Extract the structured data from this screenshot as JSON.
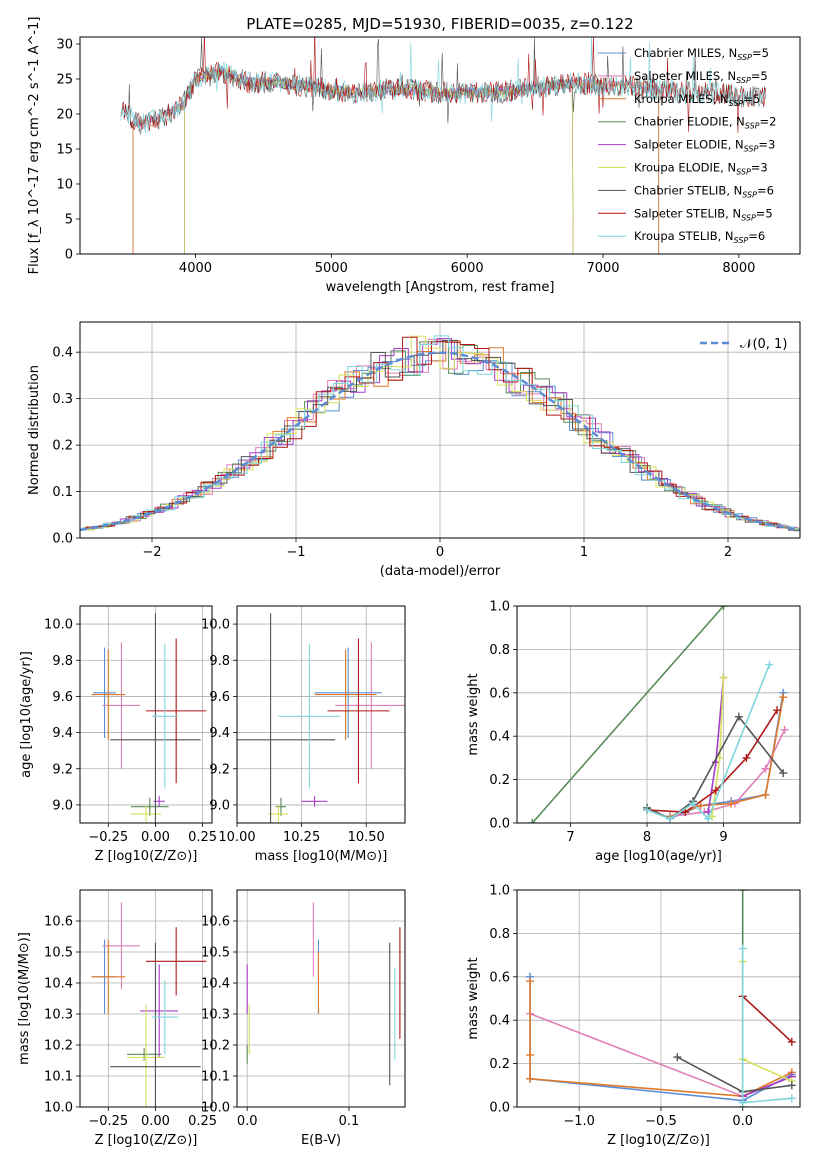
{
  "title": "PLATE=0285, MJD=51930, FIBERID=0035, z=0.122",
  "colors": {
    "Chabrier MILES": "#5b8dd6",
    "Salpeter MILES": "#e07fb6",
    "Kroupa MILES": "#e07a2a",
    "Chabrier ELODIE": "#5a8a5a",
    "Salpeter ELODIE": "#a63ec8",
    "Kroupa ELODIE": "#d8df5a",
    "Chabrier STELIB": "#555555",
    "Salpeter STELIB": "#b01818",
    "Kroupa STELIB": "#7fd6dc",
    "Normal": "#5b8dd6"
  },
  "chart_data": [
    {
      "type": "line",
      "id": "spectrum",
      "xlabel": "wavelength [Angstrom, rest frame]",
      "ylabel": "Flux [f_λ 10^-17 erg cm^-2 s^-1 A^-1]",
      "xlim": [
        3150,
        8450
      ],
      "ylim": [
        0,
        31
      ],
      "xticks": [
        4000,
        5000,
        6000,
        7000,
        8000
      ],
      "yticks": [
        0,
        5,
        10,
        15,
        20,
        25,
        30
      ],
      "grid": false,
      "legend_position": "right",
      "series": [
        {
          "name": "Chabrier MILES, N_SSP=5",
          "legend": [
            "Chabrier MILES, N",
            "SSP",
            "=5"
          ],
          "color_key": "Chabrier MILES",
          "range": [
            3540,
            7410
          ]
        },
        {
          "name": "Salpeter MILES, N_SSP=5",
          "legend": [
            "Salpeter MILES, N",
            "SSP",
            "=5"
          ],
          "color_key": "Salpeter MILES",
          "range": [
            3540,
            7410
          ]
        },
        {
          "name": "Kroupa MILES, N_SSP=5",
          "legend": [
            "Kroupa MILES, N",
            "SSP",
            "=5"
          ],
          "color_key": "Kroupa MILES",
          "range": [
            3540,
            7410
          ]
        },
        {
          "name": "Chabrier ELODIE, N_SSP=2",
          "legend": [
            "Chabrier ELODIE, N",
            "SSP",
            "=2"
          ],
          "color_key": "Chabrier ELODIE",
          "range": [
            3920,
            6780
          ]
        },
        {
          "name": "Salpeter ELODIE, N_SSP=3",
          "legend": [
            "Salpeter ELODIE, N",
            "SSP",
            "=3"
          ],
          "color_key": "Salpeter ELODIE",
          "range": [
            3920,
            6780
          ]
        },
        {
          "name": "Kroupa ELODIE, N_SSP=3",
          "legend": [
            "Kroupa ELODIE, N",
            "SSP",
            "=3"
          ],
          "color_key": "Kroupa ELODIE",
          "range": [
            3920,
            6780
          ]
        },
        {
          "name": "Chabrier STELIB, N_SSP=6",
          "legend": [
            "Chabrier STELIB, N",
            "SSP",
            "=6"
          ],
          "color_key": "Chabrier STELIB",
          "range": [
            3450,
            8200
          ]
        },
        {
          "name": "Salpeter STELIB, N_SSP=5",
          "legend": [
            "Salpeter STELIB, N",
            "SSP",
            "=5"
          ],
          "color_key": "Salpeter STELIB",
          "range": [
            3450,
            8200
          ]
        },
        {
          "name": "Kroupa STELIB, N_SSP=6",
          "legend": [
            "Kroupa STELIB, N",
            "SSP",
            "=6"
          ],
          "color_key": "Kroupa STELIB",
          "range": [
            3450,
            8200
          ]
        }
      ],
      "continuum": [
        [
          3450,
          20.5
        ],
        [
          3600,
          18.5
        ],
        [
          3750,
          19.5
        ],
        [
          3900,
          21
        ],
        [
          4000,
          25
        ],
        [
          4200,
          26
        ],
        [
          4400,
          24.5
        ],
        [
          4600,
          24.5
        ],
        [
          4800,
          24
        ],
        [
          5000,
          23.5
        ],
        [
          5200,
          23
        ],
        [
          5400,
          23.5
        ],
        [
          5600,
          23.5
        ],
        [
          5800,
          23
        ],
        [
          6000,
          23
        ],
        [
          6200,
          23
        ],
        [
          6400,
          23.5
        ],
        [
          6600,
          24
        ],
        [
          6800,
          24.5
        ],
        [
          7000,
          24
        ],
        [
          7200,
          24
        ],
        [
          7400,
          23.5
        ],
        [
          7600,
          23
        ],
        [
          7800,
          23
        ],
        [
          8000,
          22.5
        ],
        [
          8200,
          22.5
        ]
      ]
    },
    {
      "type": "area",
      "id": "residuals",
      "xlabel": "(data-model)/error",
      "ylabel": "Normed distribution",
      "xlim": [
        -2.5,
        2.5
      ],
      "ylim": [
        0,
        0.465
      ],
      "xticks": [
        -2,
        -1,
        0,
        1,
        2
      ],
      "yticks": [
        0.0,
        0.1,
        0.2,
        0.3,
        0.4
      ],
      "grid": true,
      "legend_position": "top-right",
      "normal_label": "𝒩(0, 1)",
      "bin_width": 0.1
    },
    {
      "type": "scatter",
      "id": "age-vs-Z",
      "xlabel": "Z [log10(Z/Z⊙)]",
      "ylabel": "age [log10(age/yr)]",
      "xlim": [
        -0.4,
        0.3
      ],
      "ylim": [
        8.9,
        10.1
      ],
      "xticks": [
        -0.25,
        0.0,
        0.25
      ],
      "yticks": [
        9.0,
        9.2,
        9.4,
        9.6,
        9.8,
        10.0
      ],
      "grid": true,
      "points": [
        {
          "color_key": "Chabrier MILES",
          "x": -0.27,
          "xerr": 0.06,
          "y": 9.62,
          "yerr": 0.25
        },
        {
          "color_key": "Salpeter MILES",
          "x": -0.18,
          "xerr": 0.1,
          "y": 9.55,
          "yerr": 0.35
        },
        {
          "color_key": "Kroupa MILES",
          "x": -0.25,
          "xerr": 0.09,
          "y": 9.61,
          "yerr": 0.25
        },
        {
          "color_key": "Chabrier ELODIE",
          "x": -0.03,
          "xerr": 0.1,
          "y": 8.99,
          "yerr": 0.05
        },
        {
          "color_key": "Salpeter ELODIE",
          "x": 0.02,
          "xerr": 0.03,
          "y": 9.02,
          "yerr": 0.03
        },
        {
          "color_key": "Kroupa ELODIE",
          "x": -0.05,
          "xerr": 0.08,
          "y": 8.95,
          "yerr": 0.05
        },
        {
          "color_key": "Chabrier STELIB",
          "x": 0.0,
          "xerr": 0.24,
          "y": 9.36,
          "yerr": 0.7
        },
        {
          "color_key": "Salpeter STELIB",
          "x": 0.11,
          "xerr": 0.16,
          "y": 9.52,
          "yerr": 0.4
        },
        {
          "color_key": "Kroupa STELIB",
          "x": 0.05,
          "xerr": 0.07,
          "y": 9.49,
          "yerr": 0.4
        }
      ]
    },
    {
      "type": "scatter",
      "id": "age-vs-mass",
      "xlabel": "mass [log10(M/M⊙)]",
      "ylabel": "",
      "xlim": [
        10.0,
        10.65
      ],
      "ylim": [
        8.9,
        10.1
      ],
      "xticks": [
        10.0,
        10.25,
        10.5
      ],
      "yticks": [
        9.0,
        9.2,
        9.4,
        9.6,
        9.8,
        10.0
      ],
      "grid": true,
      "points": [
        {
          "color_key": "Chabrier MILES",
          "x": 10.43,
          "xerr": 0.13,
          "y": 9.62,
          "yerr": 0.25
        },
        {
          "color_key": "Salpeter MILES",
          "x": 10.52,
          "xerr": 0.14,
          "y": 9.55,
          "yerr": 0.35
        },
        {
          "color_key": "Kroupa MILES",
          "x": 10.42,
          "xerr": 0.12,
          "y": 9.61,
          "yerr": 0.25
        },
        {
          "color_key": "Chabrier ELODIE",
          "x": 10.17,
          "xerr": 0.02,
          "y": 8.99,
          "yerr": 0.05
        },
        {
          "color_key": "Salpeter ELODIE",
          "x": 10.3,
          "xerr": 0.05,
          "y": 9.02,
          "yerr": 0.03
        },
        {
          "color_key": "Kroupa ELODIE",
          "x": 10.16,
          "xerr": 0.04,
          "y": 8.95,
          "yerr": 0.05
        },
        {
          "color_key": "Chabrier STELIB",
          "x": 10.13,
          "xerr": 0.25,
          "y": 9.36,
          "yerr": 0.7
        },
        {
          "color_key": "Salpeter STELIB",
          "x": 10.47,
          "xerr": 0.12,
          "y": 9.52,
          "yerr": 0.4
        },
        {
          "color_key": "Kroupa STELIB",
          "x": 10.28,
          "xerr": 0.12,
          "y": 9.49,
          "yerr": 0.4
        }
      ]
    },
    {
      "type": "line",
      "id": "mass-weight-vs-age",
      "xlabel": "age [log10(age/yr)]",
      "ylabel": "mass weight",
      "xlim": [
        6.3,
        10.0
      ],
      "ylim": [
        0.0,
        1.0
      ],
      "xticks": [
        7,
        8,
        9
      ],
      "yticks": [
        0.0,
        0.2,
        0.4,
        0.6,
        0.8,
        1.0
      ],
      "grid": true,
      "series": [
        {
          "color_key": "Chabrier MILES",
          "points": [
            [
              8.3,
              0.02
            ],
            [
              8.7,
              0.08
            ],
            [
              9.1,
              0.1
            ],
            [
              9.55,
              0.13
            ],
            [
              9.78,
              0.6
            ]
          ]
        },
        {
          "color_key": "Salpeter MILES",
          "points": [
            [
              8.3,
              0.03
            ],
            [
              8.75,
              0.05
            ],
            [
              9.15,
              0.09
            ],
            [
              9.55,
              0.25
            ],
            [
              9.8,
              0.43
            ]
          ]
        },
        {
          "color_key": "Kroupa MILES",
          "points": [
            [
              8.3,
              0.03
            ],
            [
              8.7,
              0.08
            ],
            [
              9.1,
              0.09
            ],
            [
              9.55,
              0.13
            ],
            [
              9.78,
              0.58
            ]
          ]
        },
        {
          "color_key": "Chabrier ELODIE",
          "points": [
            [
              6.5,
              0.0
            ],
            [
              9.0,
              1.0
            ]
          ]
        },
        {
          "color_key": "Salpeter ELODIE",
          "points": [
            [
              8.8,
              0.05
            ],
            [
              8.9,
              0.28
            ],
            [
              9.0,
              0.67
            ]
          ]
        },
        {
          "color_key": "Kroupa ELODIE",
          "points": [
            [
              8.85,
              0.03
            ],
            [
              8.95,
              0.3
            ],
            [
              9.0,
              0.67
            ]
          ]
        },
        {
          "color_key": "Chabrier STELIB",
          "points": [
            [
              8.0,
              0.07
            ],
            [
              8.3,
              0.02
            ],
            [
              8.6,
              0.1
            ],
            [
              9.2,
              0.49
            ],
            [
              9.78,
              0.23
            ]
          ]
        },
        {
          "color_key": "Salpeter STELIB",
          "points": [
            [
              8.0,
              0.06
            ],
            [
              8.5,
              0.05
            ],
            [
              8.9,
              0.15
            ],
            [
              9.3,
              0.3
            ],
            [
              9.7,
              0.52
            ]
          ]
        },
        {
          "color_key": "Kroupa STELIB",
          "points": [
            [
              8.0,
              0.06
            ],
            [
              8.3,
              0.02
            ],
            [
              8.6,
              0.09
            ],
            [
              8.8,
              0.02
            ],
            [
              9.6,
              0.73
            ]
          ]
        }
      ]
    },
    {
      "type": "scatter",
      "id": "mass-vs-Z",
      "xlabel": "Z [log10(Z/Z⊙)]",
      "ylabel": "mass [log10(M/M⊙)]",
      "xlim": [
        -0.4,
        0.3
      ],
      "ylim": [
        10.0,
        10.7
      ],
      "xticks": [
        -0.25,
        0.0,
        0.25
      ],
      "yticks": [
        10.0,
        10.1,
        10.2,
        10.3,
        10.4,
        10.5,
        10.6
      ],
      "grid": true,
      "points": [
        {
          "color_key": "Chabrier MILES",
          "x": -0.27,
          "xerr": 0.06,
          "y": 10.42,
          "yerr": 0.12
        },
        {
          "color_key": "Salpeter MILES",
          "x": -0.18,
          "xerr": 0.1,
          "y": 10.52,
          "yerr": 0.14
        },
        {
          "color_key": "Kroupa MILES",
          "x": -0.25,
          "xerr": 0.09,
          "y": 10.42,
          "yerr": 0.12
        },
        {
          "color_key": "Chabrier ELODIE",
          "x": -0.06,
          "xerr": 0.09,
          "y": 10.17,
          "yerr": 0.02
        },
        {
          "color_key": "Salpeter ELODIE",
          "x": 0.02,
          "xerr": 0.1,
          "y": 10.31,
          "yerr": 0.15
        },
        {
          "color_key": "Kroupa ELODIE",
          "x": -0.05,
          "xerr": 0.1,
          "y": 10.16,
          "yerr": 0.17
        },
        {
          "color_key": "Chabrier STELIB",
          "x": 0.0,
          "xerr": 0.24,
          "y": 10.13,
          "yerr": 0.4
        },
        {
          "color_key": "Salpeter STELIB",
          "x": 0.11,
          "xerr": 0.16,
          "y": 10.47,
          "yerr": 0.11
        },
        {
          "color_key": "Kroupa STELIB",
          "x": 0.05,
          "xerr": 0.07,
          "y": 10.29,
          "yerr": 0.12
        }
      ]
    },
    {
      "type": "scatter",
      "id": "mass-vs-ebv",
      "xlabel": "E(B-V)",
      "ylabel": "",
      "xlim": [
        -0.01,
        0.155
      ],
      "ylim": [
        10.0,
        10.7
      ],
      "xticks": [
        0.0,
        0.1
      ],
      "yticks": [
        10.0,
        10.1,
        10.2,
        10.3,
        10.4,
        10.5,
        10.6
      ],
      "grid": true,
      "points": [
        {
          "color_key": "Chabrier MILES",
          "x": 0.07,
          "y": 10.42,
          "yerr": 0.12
        },
        {
          "color_key": "Salpeter MILES",
          "x": 0.065,
          "y": 10.54,
          "yerr": 0.12
        },
        {
          "color_key": "Kroupa MILES",
          "x": 0.07,
          "y": 10.4,
          "yerr": 0.1
        },
        {
          "color_key": "Chabrier ELODIE",
          "x": 0.0,
          "y": 10.17,
          "yerr": 0.03
        },
        {
          "color_key": "Salpeter ELODIE",
          "x": 0.0,
          "y": 10.38,
          "yerr": 0.08
        },
        {
          "color_key": "Kroupa ELODIE",
          "x": 0.002,
          "y": 10.25,
          "yerr": 0.08
        },
        {
          "color_key": "Chabrier STELIB",
          "x": 0.14,
          "y": 10.3,
          "yerr": 0.23
        },
        {
          "color_key": "Salpeter STELIB",
          "x": 0.15,
          "y": 10.4,
          "yerr": 0.18
        },
        {
          "color_key": "Kroupa STELIB",
          "x": 0.145,
          "y": 10.3,
          "yerr": 0.15
        }
      ]
    },
    {
      "type": "line",
      "id": "mass-weight-vs-Z",
      "xlabel": "Z [log10(Z/Z⊙)]",
      "ylabel": "mass weight",
      "xlim": [
        -1.38,
        0.35
      ],
      "ylim": [
        0.0,
        1.0
      ],
      "xticks": [
        -1.0,
        -0.5,
        0.0
      ],
      "yticks": [
        0.0,
        0.2,
        0.4,
        0.6,
        0.8,
        1.0
      ],
      "grid": true,
      "series": [
        {
          "color_key": "Chabrier MILES",
          "points": [
            [
              -1.3,
              0.6
            ],
            [
              -1.3,
              0.13
            ],
            [
              0.0,
              0.03
            ],
            [
              0.3,
              0.15
            ]
          ]
        },
        {
          "color_key": "Salpeter MILES",
          "points": [
            [
              -1.3,
              0.43
            ],
            [
              0.0,
              0.05
            ],
            [
              0.3,
              0.14
            ]
          ]
        },
        {
          "color_key": "Kroupa MILES",
          "points": [
            [
              -1.3,
              0.58
            ],
            [
              -1.3,
              0.24
            ],
            [
              -1.3,
              0.13
            ],
            [
              0.0,
              0.05
            ],
            [
              0.3,
              0.16
            ]
          ]
        },
        {
          "color_key": "Chabrier ELODIE",
          "points": [
            [
              0.0,
              1.0
            ],
            [
              0.0,
              0.0
            ]
          ]
        },
        {
          "color_key": "Salpeter ELODIE",
          "points": [
            [
              0.0,
              0.05
            ],
            [
              0.3,
              0.14
            ]
          ]
        },
        {
          "color_key": "Kroupa ELODIE",
          "points": [
            [
              0.0,
              0.67
            ],
            [
              0.0,
              0.22
            ],
            [
              0.3,
              0.12
            ]
          ]
        },
        {
          "color_key": "Chabrier STELIB",
          "points": [
            [
              -0.4,
              0.23
            ],
            [
              0.0,
              0.07
            ],
            [
              0.3,
              0.1
            ]
          ]
        },
        {
          "color_key": "Salpeter STELIB",
          "points": [
            [
              0.0,
              0.51
            ],
            [
              0.3,
              0.3
            ]
          ]
        },
        {
          "color_key": "Kroupa STELIB",
          "points": [
            [
              0.0,
              0.73
            ],
            [
              0.0,
              0.02
            ],
            [
              0.3,
              0.04
            ]
          ]
        }
      ]
    }
  ]
}
